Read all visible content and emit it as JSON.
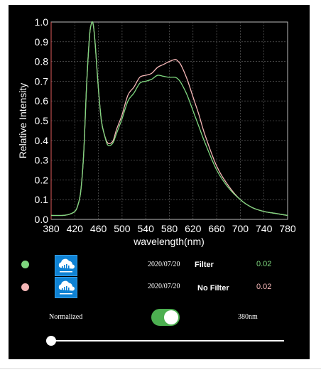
{
  "chart_data": {
    "type": "line",
    "xlabel": "wavelength(nm)",
    "ylabel": "Relative Intensity",
    "xlim": [
      380,
      780
    ],
    "ylim": [
      0,
      1.0
    ],
    "xticks": [
      "380",
      "420",
      "460",
      "500",
      "540",
      "580",
      "620",
      "660",
      "700",
      "740",
      "780"
    ],
    "yticks": [
      "0.0",
      "0.1",
      "0.2",
      "0.3",
      "0.4",
      "0.5",
      "0.6",
      "0.7",
      "0.8",
      "0.9",
      "1.0"
    ],
    "grid": true,
    "series": [
      {
        "name": "No Filter",
        "color": "#f4b6b6",
        "x": [
          380,
          400,
          410,
          420,
          425,
          430,
          435,
          440,
          445,
          448,
          450,
          452,
          455,
          460,
          465,
          470,
          475,
          480,
          485,
          490,
          495,
          500,
          510,
          520,
          530,
          540,
          550,
          560,
          570,
          580,
          590,
          595,
          600,
          610,
          620,
          630,
          640,
          660,
          680,
          700,
          720,
          740,
          760,
          780
        ],
        "y": [
          0.02,
          0.02,
          0.025,
          0.04,
          0.07,
          0.14,
          0.33,
          0.68,
          0.93,
          0.99,
          1.0,
          0.97,
          0.87,
          0.66,
          0.5,
          0.43,
          0.39,
          0.385,
          0.4,
          0.45,
          0.49,
          0.53,
          0.63,
          0.67,
          0.72,
          0.73,
          0.74,
          0.77,
          0.785,
          0.8,
          0.81,
          0.8,
          0.78,
          0.71,
          0.62,
          0.53,
          0.43,
          0.27,
          0.17,
          0.1,
          0.06,
          0.04,
          0.03,
          0.02
        ]
      },
      {
        "name": "Filter",
        "color": "#7ed67e",
        "x": [
          380,
          400,
          410,
          420,
          425,
          430,
          435,
          440,
          445,
          448,
          450,
          452,
          455,
          460,
          465,
          470,
          475,
          480,
          485,
          490,
          495,
          500,
          510,
          520,
          530,
          540,
          550,
          560,
          570,
          580,
          590,
          595,
          600,
          610,
          620,
          630,
          640,
          660,
          680,
          700,
          720,
          740,
          760,
          780
        ],
        "y": [
          0.02,
          0.02,
          0.025,
          0.04,
          0.07,
          0.14,
          0.33,
          0.68,
          0.93,
          0.99,
          1.0,
          0.97,
          0.87,
          0.66,
          0.5,
          0.43,
          0.38,
          0.375,
          0.39,
          0.43,
          0.47,
          0.51,
          0.6,
          0.64,
          0.69,
          0.7,
          0.71,
          0.73,
          0.725,
          0.72,
          0.72,
          0.71,
          0.69,
          0.63,
          0.55,
          0.47,
          0.39,
          0.25,
          0.16,
          0.1,
          0.06,
          0.04,
          0.03,
          0.02
        ]
      }
    ]
  },
  "legend": [
    {
      "dot_color": "#7ed67e",
      "icon": "cloud-icon",
      "date": "2020/07/20",
      "name": "Filter",
      "value": "0.02",
      "value_color": "#7ed67e"
    },
    {
      "dot_color": "#f4b6b6",
      "icon": "cloud-icon",
      "date": "2020/07/20",
      "name": "No Filter",
      "value": "0.02",
      "value_color": "#f4b6b6"
    }
  ],
  "controls": {
    "normalized_label": "Normalized",
    "normalized_on": true,
    "wavelength_label": "380nm",
    "slider_value": 380,
    "slider_min": 380,
    "slider_max": 780
  }
}
